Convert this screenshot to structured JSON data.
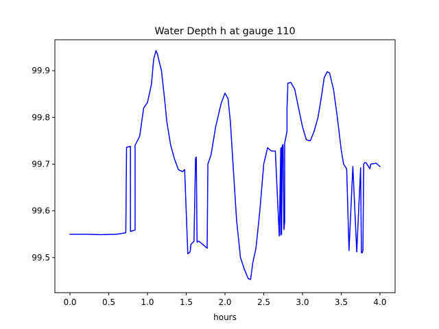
{
  "chart_data": {
    "type": "line",
    "title": "Water Depth h at gauge 110",
    "xlabel": "hours",
    "ylabel": "",
    "xlim": [
      -0.195,
      4.195
    ],
    "ylim": [
      99.4248,
      99.9663
    ],
    "xticks": [
      0.0,
      0.5,
      1.0,
      1.5,
      2.0,
      2.5,
      3.0,
      3.5,
      4.0
    ],
    "xtick_labels": [
      "0.0",
      "0.5",
      "1.0",
      "1.5",
      "2.0",
      "2.5",
      "3.0",
      "3.5",
      "4.0"
    ],
    "yticks": [
      99.5,
      99.6,
      99.7,
      99.8,
      99.9
    ],
    "ytick_labels": [
      "99.5",
      "99.6",
      "99.7",
      "99.8",
      "99.9"
    ],
    "grid": false,
    "series": [
      {
        "color": "#0000ff",
        "x": [
          0.0,
          0.2,
          0.4,
          0.6,
          0.72,
          0.73,
          0.78,
          0.78,
          0.84,
          0.84,
          0.9,
          0.95,
          1.0,
          1.05,
          1.08,
          1.11,
          1.13,
          1.15,
          1.18,
          1.22,
          1.25,
          1.3,
          1.35,
          1.4,
          1.45,
          1.48,
          1.52,
          1.55,
          1.56,
          1.6,
          1.62,
          1.63,
          1.64,
          1.66,
          1.7,
          1.77,
          1.78,
          1.82,
          1.88,
          1.95,
          2.0,
          2.04,
          2.07,
          2.1,
          2.15,
          2.2,
          2.25,
          2.3,
          2.33,
          2.36,
          2.4,
          2.45,
          2.5,
          2.55,
          2.6,
          2.65,
          2.7,
          2.72,
          2.72,
          2.73,
          2.73,
          2.74,
          2.75,
          2.76,
          2.77,
          2.77,
          2.8,
          2.8,
          2.81,
          2.81,
          2.85,
          2.9,
          2.95,
          3.0,
          3.05,
          3.1,
          3.15,
          3.2,
          3.25,
          3.28,
          3.32,
          3.35,
          3.4,
          3.45,
          3.5,
          3.53,
          3.57,
          3.6,
          3.65,
          3.7,
          3.75,
          3.76,
          3.77,
          3.78,
          3.79,
          3.8,
          3.82,
          3.87,
          3.88,
          3.95,
          4.0
        ],
        "y": [
          99.55,
          99.55,
          99.549,
          99.55,
          99.553,
          99.736,
          99.738,
          99.556,
          99.559,
          99.74,
          99.76,
          99.82,
          99.832,
          99.87,
          99.925,
          99.943,
          99.935,
          99.92,
          99.9,
          99.84,
          99.79,
          99.74,
          99.71,
          99.688,
          99.684,
          99.688,
          99.508,
          99.512,
          99.528,
          99.535,
          99.713,
          99.715,
          99.533,
          99.535,
          99.53,
          99.52,
          99.7,
          99.72,
          99.78,
          99.83,
          99.852,
          99.84,
          99.79,
          99.71,
          99.58,
          99.5,
          99.475,
          99.455,
          99.453,
          99.49,
          99.52,
          99.6,
          99.7,
          99.735,
          99.728,
          99.728,
          99.546,
          99.734,
          99.548,
          99.736,
          99.55,
          99.74,
          99.742,
          99.56,
          99.575,
          99.745,
          99.77,
          99.82,
          99.86,
          99.873,
          99.875,
          99.86,
          99.82,
          99.78,
          99.752,
          99.75,
          99.77,
          99.8,
          99.85,
          99.885,
          99.898,
          99.895,
          99.86,
          99.8,
          99.73,
          99.7,
          99.69,
          99.515,
          99.695,
          99.512,
          99.692,
          99.51,
          99.51,
          99.515,
          99.7,
          99.703,
          99.703,
          99.69,
          99.7,
          99.702,
          99.695
        ]
      }
    ]
  }
}
